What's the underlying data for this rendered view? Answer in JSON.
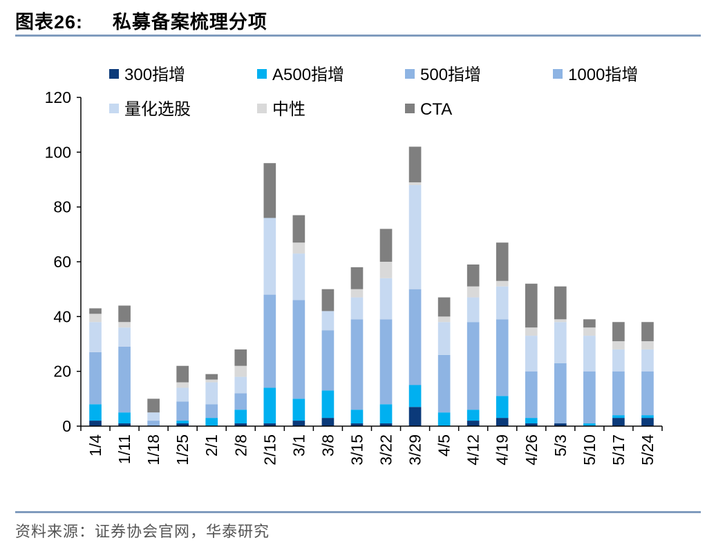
{
  "header": {
    "label": "图表",
    "number": "26:",
    "title": "私募备案梳理分项"
  },
  "source": "资料来源：证券协会官网，华泰研究",
  "chart_data": {
    "type": "bar",
    "stacked": true,
    "categories": [
      "1/4",
      "1/11",
      "1/18",
      "1/25",
      "2/1",
      "2/8",
      "2/15",
      "3/1",
      "3/8",
      "3/15",
      "3/22",
      "3/29",
      "4/5",
      "4/12",
      "4/19",
      "4/26",
      "5/3",
      "5/10",
      "5/17",
      "5/24"
    ],
    "series": [
      {
        "name": "300指增",
        "color": "#0b3a7a",
        "values": [
          2,
          1,
          0,
          1,
          0,
          1,
          1,
          2,
          3,
          1,
          1,
          7,
          0,
          2,
          3,
          1,
          1,
          0,
          3,
          3
        ]
      },
      {
        "name": "A500指增",
        "color": "#00b0f0",
        "values": [
          6,
          4,
          0,
          1,
          3,
          5,
          13,
          8,
          10,
          5,
          7,
          8,
          5,
          4,
          8,
          2,
          0,
          1,
          1,
          1
        ]
      },
      {
        "name": "500指增",
        "color": "#8eb4e3",
        "values": [
          19,
          24,
          1,
          7,
          0,
          6,
          34,
          36,
          22,
          33,
          31,
          35,
          21,
          32,
          28,
          17,
          22,
          19,
          16,
          16
        ]
      },
      {
        "name": "1000指增",
        "color": "#8eb4e3",
        "values": [
          0,
          0,
          1,
          0,
          5,
          0,
          0,
          0,
          0,
          0,
          0,
          0,
          0,
          0,
          0,
          0,
          0,
          0,
          0,
          0
        ]
      },
      {
        "name": "量化选股",
        "color": "#c6d9f1",
        "values": [
          11,
          7,
          3,
          5,
          8,
          6,
          28,
          17,
          7,
          8,
          15,
          38,
          12,
          9,
          12,
          13,
          15,
          13,
          8,
          8
        ]
      },
      {
        "name": "中性",
        "color": "#d9d9d9",
        "values": [
          3,
          2,
          0,
          2,
          1,
          4,
          0,
          4,
          0,
          3,
          6,
          1,
          2,
          4,
          2,
          3,
          1,
          3,
          3,
          3
        ]
      },
      {
        "name": "CTA",
        "color": "#7f7f7f",
        "values": [
          2,
          6,
          5,
          6,
          2,
          6,
          20,
          10,
          8,
          8,
          12,
          13,
          7,
          8,
          14,
          16,
          12,
          3,
          7,
          7
        ]
      }
    ],
    "ylim": [
      0,
      120
    ],
    "yticks": [
      0,
      20,
      40,
      60,
      80,
      100,
      120
    ],
    "legend": "top",
    "grid": false
  }
}
